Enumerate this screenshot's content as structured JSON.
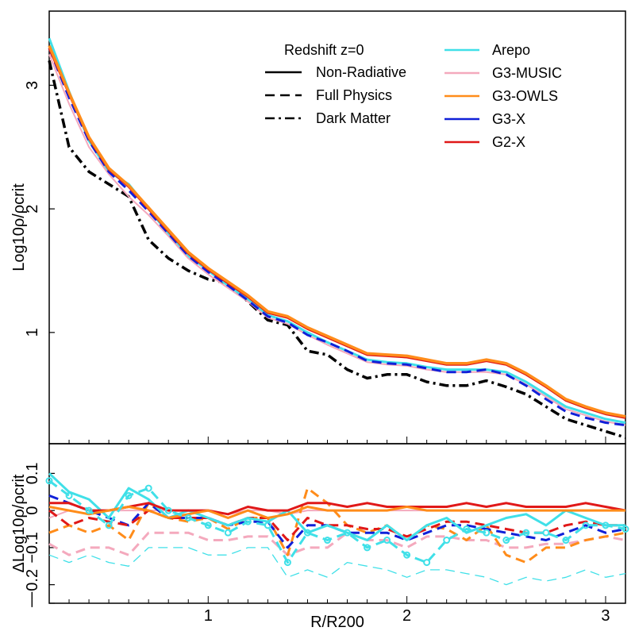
{
  "chart_data": [
    {
      "panel": "main",
      "type": "line",
      "ylabel": "Log10ρ/ρcrit",
      "xlim": [
        0.2,
        3.1
      ],
      "ylim": [
        0.1,
        3.6
      ],
      "yticks": [
        "1",
        "2",
        "3"
      ],
      "ytick_values": [
        1,
        2,
        3
      ],
      "legend": {
        "title": "Redshift z=0",
        "styles": [
          {
            "label": "Non-Radiative",
            "dash": "solid"
          },
          {
            "label": "Full Physics",
            "dash": "dashed"
          },
          {
            "label": "Dark Matter",
            "dash": "dashdot"
          }
        ],
        "codes": [
          {
            "label": "Arepo",
            "color": "#40e0e8"
          },
          {
            "label": "G3-MUSIC",
            "color": "#f4a9bd"
          },
          {
            "label": "G3-OWLS",
            "color": "#ff8c1a"
          },
          {
            "label": "G3-X",
            "color": "#1020d8"
          },
          {
            "label": "G2-X",
            "color": "#e01818"
          }
        ]
      },
      "x": [
        0.2,
        0.3,
        0.4,
        0.5,
        0.6,
        0.7,
        0.8,
        0.9,
        1.0,
        1.1,
        1.2,
        1.3,
        1.4,
        1.5,
        1.6,
        1.7,
        1.8,
        1.9,
        2.0,
        2.1,
        2.2,
        2.3,
        2.4,
        2.5,
        2.6,
        2.7,
        2.8,
        2.9,
        3.0,
        3.1
      ],
      "series": [
        {
          "name": "Dark Matter",
          "color": "#000000",
          "dash": "dashdot",
          "width": 3.5,
          "values": [
            3.2,
            2.5,
            2.3,
            2.2,
            2.1,
            1.75,
            1.6,
            1.5,
            1.43,
            1.4,
            1.25,
            1.1,
            1.06,
            0.85,
            0.82,
            0.7,
            0.63,
            0.66,
            0.66,
            0.6,
            0.57,
            0.57,
            0.61,
            0.56,
            0.5,
            0.4,
            0.3,
            0.25,
            0.2,
            0.15
          ]
        },
        {
          "name": "Arepo Non-Radiative",
          "color": "#40e0e8",
          "dash": "solid",
          "width": 3,
          "values": [
            3.38,
            2.95,
            2.55,
            2.3,
            2.2,
            2.0,
            1.8,
            1.62,
            1.5,
            1.38,
            1.27,
            1.14,
            1.09,
            1.0,
            0.92,
            0.85,
            0.78,
            0.76,
            0.75,
            0.72,
            0.7,
            0.7,
            0.7,
            0.68,
            0.6,
            0.5,
            0.4,
            0.35,
            0.3,
            0.27
          ]
        },
        {
          "name": "G3-MUSIC Non-Radiative",
          "color": "#f4a9bd",
          "dash": "solid",
          "width": 2,
          "values": [
            3.25,
            2.85,
            2.5,
            2.28,
            2.1,
            1.95,
            1.78,
            1.6,
            1.47,
            1.36,
            1.25,
            1.12,
            1.07,
            0.98,
            0.9,
            0.83,
            0.76,
            0.74,
            0.73,
            0.7,
            0.68,
            0.68,
            0.68,
            0.66,
            0.58,
            0.48,
            0.38,
            0.33,
            0.28,
            0.25
          ]
        },
        {
          "name": "G3-X Full Physics",
          "color": "#1020d8",
          "dash": "dashed",
          "width": 3,
          "values": [
            3.3,
            2.9,
            2.55,
            2.3,
            2.15,
            1.98,
            1.8,
            1.62,
            1.49,
            1.38,
            1.26,
            1.13,
            1.08,
            0.98,
            0.92,
            0.85,
            0.77,
            0.75,
            0.74,
            0.71,
            0.68,
            0.68,
            0.7,
            0.66,
            0.57,
            0.46,
            0.36,
            0.31,
            0.27,
            0.25
          ]
        },
        {
          "name": "G2-X Non-Radiative",
          "color": "#e01818",
          "dash": "solid",
          "width": 3,
          "values": [
            3.3,
            2.93,
            2.57,
            2.32,
            2.18,
            2.0,
            1.82,
            1.64,
            1.51,
            1.4,
            1.29,
            1.16,
            1.12,
            1.03,
            0.96,
            0.89,
            0.82,
            0.81,
            0.8,
            0.77,
            0.74,
            0.74,
            0.77,
            0.74,
            0.66,
            0.56,
            0.45,
            0.39,
            0.34,
            0.31
          ]
        },
        {
          "name": "G3-OWLS Non-Radiative",
          "color": "#ff8c1a",
          "dash": "solid",
          "width": 3.5,
          "values": [
            3.32,
            2.94,
            2.58,
            2.33,
            2.19,
            2.01,
            1.83,
            1.65,
            1.52,
            1.41,
            1.3,
            1.17,
            1.13,
            1.04,
            0.97,
            0.9,
            0.83,
            0.82,
            0.81,
            0.78,
            0.75,
            0.75,
            0.78,
            0.75,
            0.67,
            0.57,
            0.46,
            0.4,
            0.35,
            0.32
          ]
        }
      ]
    },
    {
      "panel": "residual",
      "type": "line",
      "xlabel": "R/R200",
      "ylabel": "ΔLog10ρ/ρcrit",
      "xlim": [
        0.2,
        3.1
      ],
      "ylim": [
        -0.25,
        0.18
      ],
      "yticks": [
        "0.1",
        "0",
        "−0.1",
        "−0.2",
        "−"
      ],
      "ytick_values": [
        0.1,
        0,
        -0.1,
        -0.2,
        -0.25
      ],
      "xticks": [
        "1",
        "2",
        "3"
      ],
      "xtick_values": [
        1,
        2,
        3
      ],
      "x": [
        0.2,
        0.3,
        0.4,
        0.5,
        0.6,
        0.7,
        0.8,
        0.9,
        1.0,
        1.1,
        1.2,
        1.3,
        1.4,
        1.5,
        1.6,
        1.7,
        1.8,
        1.9,
        2.0,
        2.1,
        2.2,
        2.3,
        2.4,
        2.5,
        2.6,
        2.7,
        2.8,
        2.9,
        3.0,
        3.1
      ],
      "series": [
        {
          "name": "G3-MUSIC Full Physics",
          "color": "#f4a9bd",
          "dash": "dashed",
          "width": 3,
          "values": [
            -0.09,
            -0.12,
            -0.1,
            -0.1,
            -0.12,
            -0.06,
            -0.06,
            -0.06,
            -0.08,
            -0.08,
            -0.07,
            -0.07,
            -0.12,
            -0.1,
            -0.1,
            -0.06,
            -0.08,
            -0.08,
            -0.1,
            -0.07,
            -0.07,
            -0.08,
            -0.08,
            -0.1,
            -0.1,
            -0.09,
            -0.09,
            -0.08,
            -0.07,
            -0.08
          ]
        },
        {
          "name": "Arepo Full Physics",
          "color": "#40e0e8",
          "dash": "dashed",
          "width": 1.3,
          "values": [
            -0.12,
            -0.14,
            -0.12,
            -0.14,
            -0.15,
            -0.1,
            -0.1,
            -0.1,
            -0.12,
            -0.12,
            -0.1,
            -0.1,
            -0.18,
            -0.16,
            -0.18,
            -0.14,
            -0.15,
            -0.16,
            -0.18,
            -0.16,
            -0.16,
            -0.17,
            -0.18,
            -0.2,
            -0.18,
            -0.19,
            -0.18,
            -0.16,
            -0.18,
            -0.17
          ]
        },
        {
          "name": "G3-MUSIC Non-Radiative",
          "color": "#f4a9bd",
          "dash": "solid",
          "width": 2,
          "values": [
            -0.02,
            0.0,
            -0.01,
            0.0,
            0.0,
            0.0,
            0.0,
            0.0,
            0.0,
            -0.01,
            0.0,
            0.0,
            -0.01,
            0.0,
            0.0,
            0.0,
            0.0,
            0.0,
            0.0,
            0.0,
            0.0,
            0.0,
            0.0,
            0.0,
            0.0,
            0.0,
            0.0,
            0.0,
            0.0,
            0.0
          ]
        },
        {
          "name": "G3-OWLS Full Physics",
          "color": "#ff8c1a",
          "dash": "dashed",
          "width": 3,
          "values": [
            -0.06,
            -0.04,
            -0.06,
            -0.04,
            -0.08,
            0.02,
            -0.02,
            -0.03,
            -0.02,
            -0.05,
            -0.02,
            -0.02,
            -0.12,
            0.06,
            0.02,
            -0.04,
            -0.06,
            -0.04,
            -0.08,
            -0.04,
            -0.05,
            -0.08,
            -0.04,
            -0.12,
            -0.14,
            -0.1,
            -0.1,
            -0.08,
            -0.07,
            -0.06
          ]
        },
        {
          "name": "G3-X Full Physics",
          "color": "#1020d8",
          "dash": "dashed",
          "width": 3,
          "values": [
            0.04,
            0.02,
            0.0,
            -0.02,
            -0.04,
            0.02,
            -0.02,
            -0.02,
            -0.02,
            -0.04,
            -0.03,
            -0.03,
            -0.1,
            -0.04,
            -0.04,
            -0.06,
            -0.06,
            -0.06,
            -0.08,
            -0.06,
            -0.04,
            -0.04,
            -0.05,
            -0.06,
            -0.07,
            -0.08,
            -0.06,
            -0.04,
            -0.06,
            -0.05
          ]
        },
        {
          "name": "G2-X Full Physics",
          "color": "#e01818",
          "dash": "dashed",
          "width": 3,
          "values": [
            0.0,
            -0.04,
            -0.02,
            -0.03,
            -0.04,
            0.0,
            -0.02,
            -0.02,
            -0.02,
            -0.04,
            -0.02,
            -0.02,
            -0.08,
            -0.02,
            -0.04,
            -0.04,
            -0.05,
            -0.05,
            -0.07,
            -0.05,
            -0.03,
            -0.03,
            -0.04,
            -0.05,
            -0.06,
            -0.06,
            -0.04,
            -0.03,
            -0.04,
            -0.04
          ]
        },
        {
          "name": "Arepo Non-Radiative",
          "color": "#40e0e8",
          "dash": "solid",
          "width": 3,
          "values": [
            0.1,
            0.05,
            0.03,
            -0.02,
            0.06,
            0.03,
            -0.02,
            0.0,
            -0.02,
            -0.04,
            -0.02,
            -0.03,
            0.0,
            -0.06,
            -0.04,
            -0.06,
            -0.08,
            -0.04,
            -0.08,
            -0.04,
            -0.02,
            -0.06,
            -0.04,
            -0.02,
            -0.01,
            -0.04,
            0.0,
            -0.02,
            -0.04,
            -0.04
          ]
        },
        {
          "name": "G2-X Non-Radiative",
          "color": "#e01818",
          "dash": "solid",
          "width": 3,
          "values": [
            0.02,
            0.02,
            0.0,
            0.0,
            0.01,
            0.02,
            0.0,
            0.0,
            0.0,
            -0.01,
            0.01,
            0.0,
            0.0,
            0.02,
            0.02,
            0.01,
            0.02,
            0.01,
            0.01,
            0.01,
            0.01,
            0.02,
            0.01,
            0.02,
            0.01,
            0.01,
            0.01,
            0.02,
            0.01,
            0.0
          ]
        },
        {
          "name": "G3-OWLS Non-Radiative",
          "color": "#ff8c1a",
          "dash": "solid",
          "width": 3,
          "values": [
            0.01,
            0.0,
            -0.01,
            0.0,
            0.01,
            0.0,
            -0.02,
            -0.01,
            0.0,
            -0.02,
            0.0,
            -0.02,
            -0.01,
            0.01,
            0.0,
            0.0,
            0.0,
            0.0,
            0.01,
            0.0,
            0.0,
            0.0,
            0.0,
            0.0,
            0.0,
            0.0,
            0.0,
            0.0,
            0.0,
            0.0
          ]
        },
        {
          "name": "Arepo Full Physics (markers)",
          "color": "#40e0e8",
          "dash": "dashed",
          "width": 3,
          "markers": true,
          "values": [
            0.08,
            0.04,
            0.0,
            -0.04,
            0.04,
            0.06,
            0.0,
            -0.02,
            -0.04,
            -0.06,
            -0.03,
            -0.04,
            -0.14,
            -0.06,
            -0.08,
            -0.06,
            -0.1,
            -0.08,
            -0.12,
            -0.14,
            -0.08,
            -0.05,
            -0.06,
            -0.08,
            -0.06,
            -0.06,
            -0.08,
            -0.04,
            -0.04,
            -0.05
          ]
        }
      ]
    }
  ]
}
